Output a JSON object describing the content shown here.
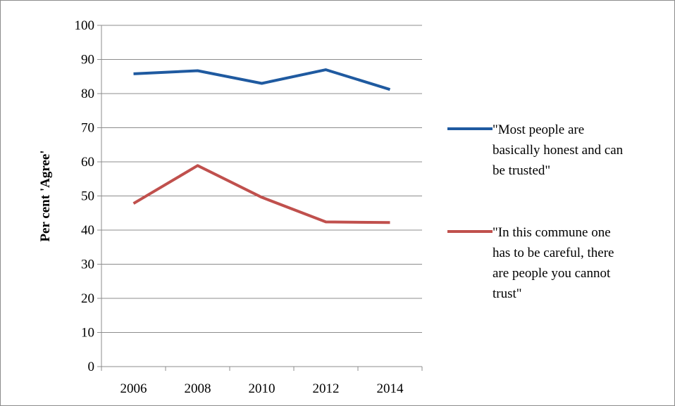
{
  "chart_data": {
    "type": "line",
    "title": "",
    "xlabel": "",
    "ylabel": "Per cent 'Agree'",
    "x": [
      "2006",
      "2008",
      "2010",
      "2012",
      "2014"
    ],
    "ylim": [
      0,
      100
    ],
    "yticks": [
      0,
      10,
      20,
      30,
      40,
      50,
      60,
      70,
      80,
      90,
      100
    ],
    "grid": "horizontal",
    "legend_position": "right",
    "series": [
      {
        "name": "\"Most people are basically honest and can be trusted\"",
        "legend_lines": [
          "\"Most people are",
          "basically honest and can",
          "be trusted\""
        ],
        "color": "#1f5aa0",
        "values": [
          85.8,
          86.7,
          83.0,
          87.0,
          81.2
        ]
      },
      {
        "name": "\"In this commune one has to be careful, there are people you cannot trust\"",
        "legend_lines": [
          "\"In this commune one",
          "has to be careful, there",
          "are people you cannot",
          "trust\""
        ],
        "color": "#c0504d",
        "values": [
          47.8,
          58.9,
          49.6,
          42.4,
          42.2
        ]
      }
    ]
  }
}
